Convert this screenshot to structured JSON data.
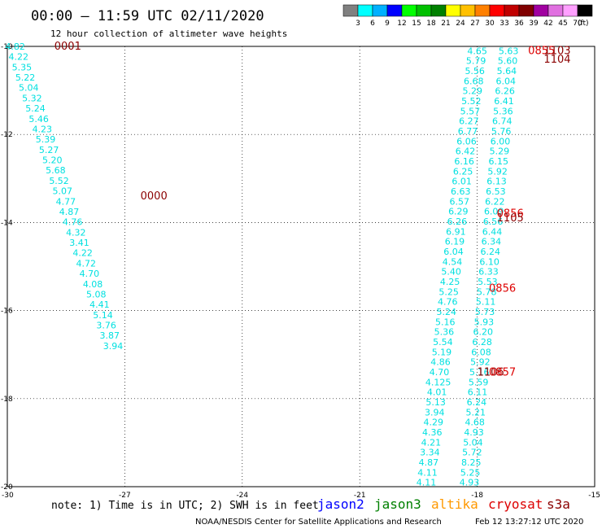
{
  "header": {
    "title": "00:00 – 11:59 UTC 02/11/2020",
    "subtitle": "12 hour collection of altimeter wave heights"
  },
  "colorbar": {
    "labels": [
      "3",
      "6",
      "9",
      "12",
      "15",
      "18",
      "21",
      "24",
      "27",
      "30",
      "33",
      "36",
      "39",
      "42",
      "45",
      "70"
    ],
    "unit": "(ft)",
    "colors": [
      "#808080",
      "#00ffff",
      "#00b0ff",
      "#0000ff",
      "#00ff00",
      "#00c000",
      "#008000",
      "#ffff00",
      "#ffc000",
      "#ff8000",
      "#ff0000",
      "#c00000",
      "#800000",
      "#a000a0",
      "#e070e0",
      "#ffa0ff",
      "#000000"
    ]
  },
  "footer": {
    "note": "note: 1) Time is in UTC; 2) SWH is in feet",
    "credit": "NOAA/NESDIS Center for Satellite Applications and Research",
    "timestamp": "Feb 12 13:27:12 UTC 2020",
    "satellites": [
      {
        "name": "jason2",
        "color": "#0000ff"
      },
      {
        "name": "jason3",
        "color": "#008000"
      },
      {
        "name": "altika",
        "color": "#ff9900"
      },
      {
        "name": "cryosat",
        "color": "#dd0000"
      },
      {
        "name": "s3a",
        "color": "#8b0000"
      }
    ]
  },
  "chart_data": {
    "type": "scatter",
    "xlim": [
      -30,
      -15
    ],
    "ylim": [
      -20,
      -10
    ],
    "x_ticks": [
      "-30",
      "-27",
      "-24",
      "-21",
      "-18",
      "-15"
    ],
    "y_ticks": [
      "-10",
      "-12",
      "-14",
      "-16",
      "-18",
      "-20"
    ],
    "grid": true,
    "wave_height_color": "#00e0e0",
    "track_west": {
      "x": [
        -29.8,
        -27.3
      ],
      "y": [
        -10.0,
        -16.8
      ],
      "labels": [
        "4.82",
        "4.22",
        "5.35",
        "5.22",
        "5.04",
        "5.32",
        "5.24",
        "5.46",
        "4.23",
        "5.39",
        "5.27",
        "5.20",
        "5.68",
        "5.52",
        "5.07",
        "4.77",
        "4.87",
        "4.76",
        "4.32",
        "3.41",
        "4.22",
        "4.72",
        "4.70",
        "4.08",
        "5.08",
        "4.41",
        "5.14",
        "3.76",
        "3.87",
        "3.94"
      ]
    },
    "track_east_a": {
      "x": [
        -18.0,
        -19.3
      ],
      "y": [
        -10.1,
        -19.9
      ],
      "labels": [
        "4.65",
        "5.79",
        "5.56",
        "6.68",
        "5.29",
        "5.52",
        "5.57",
        "6.27",
        "6.77",
        "6.06",
        "6.42",
        "6.16",
        "6.25",
        "6.01",
        "6.63",
        "6.57",
        "6.29",
        "6.26",
        "6.91",
        "6.19",
        "6.04",
        "4.54",
        "5.40",
        "4.25",
        "5.25",
        "4.76",
        "5.24",
        "5.16",
        "5.36",
        "5.54",
        "5.19",
        "4.86",
        "4.70",
        "4.125",
        "4.01",
        "5.13",
        "3.94",
        "4.29",
        "4.36",
        "4.21",
        "3.34",
        "4.87",
        "4.11",
        "4.11"
      ]
    },
    "track_east_b": {
      "x": [
        -17.2,
        -18.2
      ],
      "y": [
        -10.1,
        -19.9
      ],
      "labels": [
        "5.63",
        "5.60",
        "5.64",
        "6.04",
        "6.26",
        "6.41",
        "5.36",
        "6.74",
        "5.76",
        "6.00",
        "5.29",
        "6.15",
        "5.92",
        "6.13",
        "6.53",
        "6.22",
        "6.09",
        "6.56",
        "6.44",
        "6.34",
        "6.24",
        "6.10",
        "6.33",
        "5.53",
        "5.78",
        "5.11",
        "5.73",
        "5.93",
        "6.20",
        "6.28",
        "6.08",
        "5.92",
        "5.16",
        "5.59",
        "6.11",
        "6.24",
        "5.21",
        "4.68",
        "4.93",
        "5.04",
        "5.72",
        "8.25",
        "5.25",
        "4.93"
      ]
    },
    "time_labels": [
      {
        "text": "0001",
        "x": -28.8,
        "y": -10.0,
        "sat": "s3a"
      },
      {
        "text": "0000",
        "x": -26.6,
        "y": -13.4,
        "sat": "s3a"
      },
      {
        "text": "0855",
        "x": -16.7,
        "y": -10.1,
        "sat": "cryosat"
      },
      {
        "text": "1103",
        "x": -16.3,
        "y": -10.1,
        "sat": "s3a"
      },
      {
        "text": "1104",
        "x": -16.3,
        "y": -10.3,
        "sat": "s3a"
      },
      {
        "text": "0856",
        "x": -17.5,
        "y": -13.8,
        "sat": "cryosat"
      },
      {
        "text": "1105",
        "x": -17.5,
        "y": -13.9,
        "sat": "s3a"
      },
      {
        "text": "0856",
        "x": -17.7,
        "y": -15.5,
        "sat": "cryosat"
      },
      {
        "text": "1106",
        "x": -18.0,
        "y": -17.4,
        "sat": "s3a"
      },
      {
        "text": "0857",
        "x": -17.7,
        "y": -17.4,
        "sat": "cryosat"
      }
    ]
  }
}
